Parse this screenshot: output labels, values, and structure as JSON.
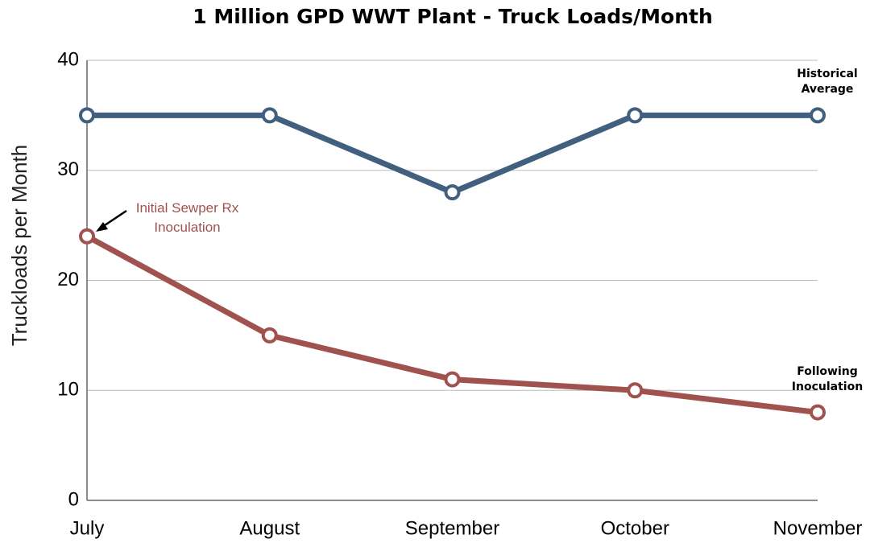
{
  "chart_data": {
    "type": "line",
    "title": "1 Million GPD WWT Plant - Truck Loads/Month",
    "y_label": "Truckloads per Month",
    "categories": [
      "July",
      "August",
      "September",
      "October",
      "November"
    ],
    "series": [
      {
        "name": "Historical Average",
        "color": "#41607f",
        "values": [
          35,
          35,
          28,
          35,
          35
        ]
      },
      {
        "name": "Following Inoculation",
        "color": "#a0524f",
        "values": [
          24,
          15,
          11,
          10,
          8
        ]
      }
    ],
    "annotations": [
      {
        "text": "Initial Sewper Rx Inoculation",
        "color": "#a0524f"
      }
    ],
    "ylim": [
      0,
      40
    ],
    "yticks": [
      0,
      10,
      20,
      30,
      40
    ],
    "grid": true
  }
}
